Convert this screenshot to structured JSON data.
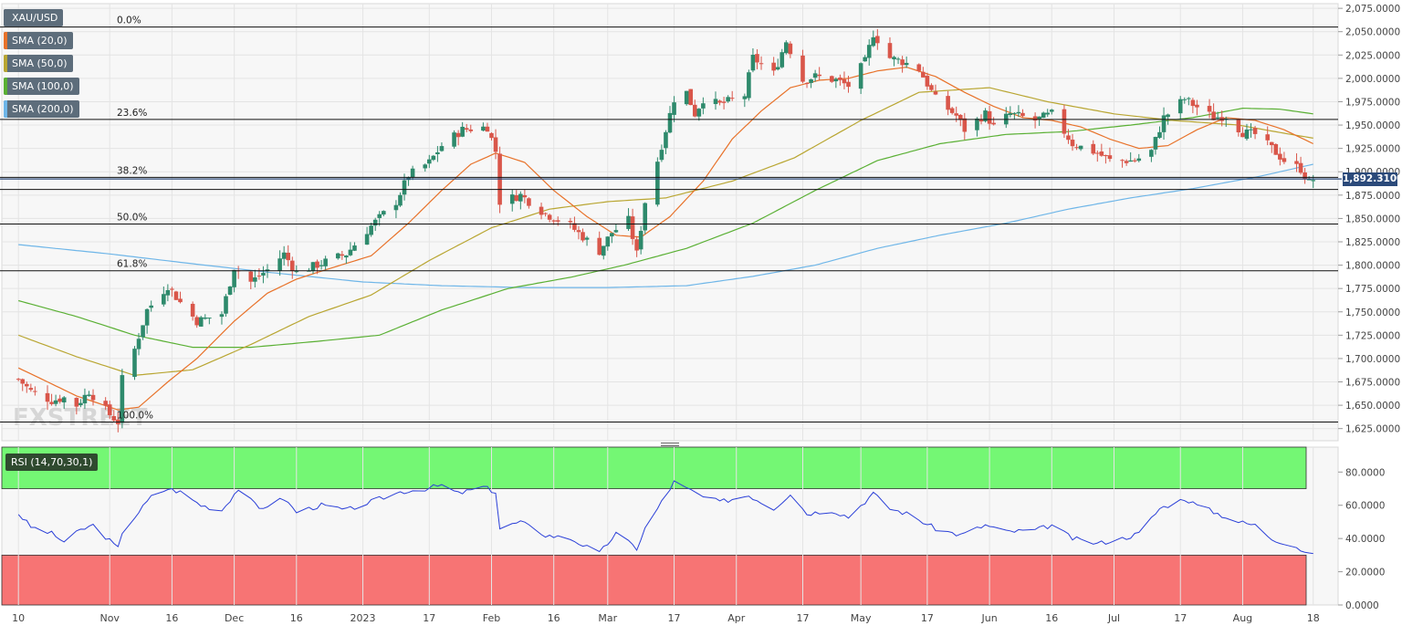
{
  "chart_data": [
    {
      "type": "candlestick",
      "symbol": "XAU/USD",
      "ylim": [
        1612,
        2080
      ],
      "y_ticks": [
        1625,
        1650,
        1675,
        1700,
        1725,
        1750,
        1775,
        1800,
        1825,
        1850,
        1875,
        1900,
        1925,
        1950,
        1975,
        2000,
        2025,
        2050,
        2075
      ],
      "y_tick_labels": [
        "1,625.0000",
        "1,650.0000",
        "1,675.0000",
        "1,700.0000",
        "1,725.0000",
        "1,750.0000",
        "1,775.0000",
        "1,800.0000",
        "1,825.0000",
        "1,850.0000",
        "1,875.0000",
        "1,900.0000",
        "1,925.0000",
        "1,950.0000",
        "1,975.0000",
        "2,000.0000",
        "2,025.0000",
        "2,050.0000",
        "2,075.0000"
      ],
      "x_ticks": [
        {
          "label": "10",
          "date": "2022-10-10"
        },
        {
          "label": "Nov",
          "date": "2022-11-01"
        },
        {
          "label": "16",
          "date": "2022-11-16"
        },
        {
          "label": "Dec",
          "date": "2022-12-01"
        },
        {
          "label": "16",
          "date": "2022-12-16"
        },
        {
          "label": "2023",
          "date": "2023-01-01"
        },
        {
          "label": "17",
          "date": "2023-01-17"
        },
        {
          "label": "Feb",
          "date": "2023-02-01"
        },
        {
          "label": "16",
          "date": "2023-02-16"
        },
        {
          "label": "Mar",
          "date": "2023-03-01"
        },
        {
          "label": "17",
          "date": "2023-03-17"
        },
        {
          "label": "Apr",
          "date": "2023-04-01"
        },
        {
          "label": "17",
          "date": "2023-04-17"
        },
        {
          "label": "May",
          "date": "2023-05-01"
        },
        {
          "label": "17",
          "date": "2023-05-17"
        },
        {
          "label": "Jun",
          "date": "2023-06-01"
        },
        {
          "label": "16",
          "date": "2023-06-16"
        },
        {
          "label": "Jul",
          "date": "2023-07-01"
        },
        {
          "label": "17",
          "date": "2023-07-17"
        },
        {
          "label": "Aug",
          "date": "2023-08-01"
        },
        {
          "label": "18",
          "date": "2023-08-18"
        }
      ],
      "legend": [
        {
          "name": "XAU/USD",
          "color": "#5d6d7b"
        },
        {
          "name": "SMA (20,0)",
          "color": "#e8722a"
        },
        {
          "name": "SMA (50,0)",
          "color": "#b9a632"
        },
        {
          "name": "SMA (100,0)",
          "color": "#5ab034"
        },
        {
          "name": "SMA (200,0)",
          "color": "#6fb6e8"
        }
      ],
      "last_price_label": "1,892.3100",
      "last_price": 1892.31,
      "fibonacci": [
        {
          "label": "0.0%",
          "value": 2055
        },
        {
          "label": "23.6%",
          "value": 1956
        },
        {
          "label": "38.2%",
          "value": 1894
        },
        {
          "label": "50.0%",
          "value": 1844
        },
        {
          "label": "61.8%",
          "value": 1794
        },
        {
          "label": "100.0%",
          "value": 1632
        }
      ],
      "extra_level": 1881,
      "up_color": "#2e8a6c",
      "down_color": "#d9564a",
      "anchors": [
        [
          "2022-10-10",
          1678
        ],
        [
          "2022-10-13",
          1665
        ],
        [
          "2022-10-18",
          1655
        ],
        [
          "2022-10-21",
          1658
        ],
        [
          "2022-10-24",
          1650
        ],
        [
          "2022-10-27",
          1665
        ],
        [
          "2022-11-01",
          1640
        ],
        [
          "2022-11-03",
          1632
        ],
        [
          "2022-11-04",
          1678
        ],
        [
          "2022-11-07",
          1710
        ],
        [
          "2022-11-10",
          1752
        ],
        [
          "2022-11-15",
          1778
        ],
        [
          "2022-11-18",
          1760
        ],
        [
          "2022-11-22",
          1740
        ],
        [
          "2022-11-28",
          1748
        ],
        [
          "2022-12-01",
          1798
        ],
        [
          "2022-12-05",
          1782
        ],
        [
          "2022-12-09",
          1795
        ],
        [
          "2022-12-13",
          1812
        ],
        [
          "2022-12-16",
          1792
        ],
        [
          "2022-12-22",
          1802
        ],
        [
          "2022-12-28",
          1812
        ],
        [
          "2023-01-03",
          1842
        ],
        [
          "2023-01-09",
          1868
        ],
        [
          "2023-01-12",
          1896
        ],
        [
          "2023-01-17",
          1910
        ],
        [
          "2023-01-20",
          1928
        ],
        [
          "2023-01-25",
          1945
        ],
        [
          "2023-01-31",
          1948
        ],
        [
          "2023-02-02",
          1922
        ],
        [
          "2023-02-03",
          1868
        ],
        [
          "2023-02-08",
          1875
        ],
        [
          "2023-02-14",
          1855
        ],
        [
          "2023-02-20",
          1842
        ],
        [
          "2023-02-27",
          1815
        ],
        [
          "2023-03-02",
          1835
        ],
        [
          "2023-03-06",
          1848
        ],
        [
          "2023-03-08",
          1812
        ],
        [
          "2023-03-10",
          1868
        ],
        [
          "2023-03-13",
          1912
        ],
        [
          "2023-03-17",
          1978
        ],
        [
          "2023-03-20",
          1985
        ],
        [
          "2023-03-22",
          1962
        ],
        [
          "2023-03-24",
          1978
        ],
        [
          "2023-03-28",
          1972
        ],
        [
          "2023-04-03",
          1982
        ],
        [
          "2023-04-05",
          2022
        ],
        [
          "2023-04-10",
          2005
        ],
        [
          "2023-04-13",
          2040
        ],
        [
          "2023-04-17",
          1998
        ],
        [
          "2023-04-20",
          2002
        ],
        [
          "2023-04-25",
          1998
        ],
        [
          "2023-04-28",
          1992
        ],
        [
          "2023-05-02",
          2018
        ],
        [
          "2023-05-04",
          2048
        ],
        [
          "2023-05-08",
          2022
        ],
        [
          "2023-05-11",
          2018
        ],
        [
          "2023-05-15",
          2010
        ],
        [
          "2023-05-19",
          1978
        ],
        [
          "2023-05-24",
          1960
        ],
        [
          "2023-05-26",
          1945
        ],
        [
          "2023-05-31",
          1962
        ],
        [
          "2023-06-02",
          1948
        ],
        [
          "2023-06-06",
          1962
        ],
        [
          "2023-06-12",
          1955
        ],
        [
          "2023-06-16",
          1962
        ],
        [
          "2023-06-21",
          1930
        ],
        [
          "2023-06-27",
          1920
        ],
        [
          "2023-06-30",
          1912
        ],
        [
          "2023-07-06",
          1912
        ],
        [
          "2023-07-10",
          1922
        ],
        [
          "2023-07-13",
          1958
        ],
        [
          "2023-07-18",
          1978
        ],
        [
          "2023-07-20",
          1972
        ],
        [
          "2023-07-25",
          1958
        ],
        [
          "2023-07-28",
          1960
        ],
        [
          "2023-08-01",
          1942
        ],
        [
          "2023-08-04",
          1940
        ],
        [
          "2023-08-08",
          1925
        ],
        [
          "2023-08-11",
          1912
        ],
        [
          "2023-08-15",
          1903
        ],
        [
          "2023-08-17",
          1888
        ],
        [
          "2023-08-18",
          1892
        ]
      ],
      "sma_20": [
        [
          "2022-10-10",
          1690
        ],
        [
          "2022-10-24",
          1660
        ],
        [
          "2022-11-03",
          1645
        ],
        [
          "2022-11-08",
          1648
        ],
        [
          "2022-11-15",
          1675
        ],
        [
          "2022-11-22",
          1700
        ],
        [
          "2022-12-01",
          1740
        ],
        [
          "2022-12-09",
          1770
        ],
        [
          "2022-12-16",
          1785
        ],
        [
          "2022-12-23",
          1795
        ],
        [
          "2023-01-03",
          1810
        ],
        [
          "2023-01-12",
          1845
        ],
        [
          "2023-01-20",
          1880
        ],
        [
          "2023-01-27",
          1908
        ],
        [
          "2023-02-02",
          1920
        ],
        [
          "2023-02-09",
          1910
        ],
        [
          "2023-02-16",
          1880
        ],
        [
          "2023-02-24",
          1852
        ],
        [
          "2023-03-03",
          1832
        ],
        [
          "2023-03-09",
          1830
        ],
        [
          "2023-03-16",
          1852
        ],
        [
          "2023-03-24",
          1890
        ],
        [
          "2023-03-31",
          1935
        ],
        [
          "2023-04-07",
          1965
        ],
        [
          "2023-04-14",
          1990
        ],
        [
          "2023-04-21",
          1998
        ],
        [
          "2023-04-28",
          2000
        ],
        [
          "2023-05-05",
          2008
        ],
        [
          "2023-05-12",
          2012
        ],
        [
          "2023-05-19",
          2002
        ],
        [
          "2023-05-26",
          1985
        ],
        [
          "2023-06-02",
          1970
        ],
        [
          "2023-06-09",
          1958
        ],
        [
          "2023-06-16",
          1955
        ],
        [
          "2023-06-23",
          1948
        ],
        [
          "2023-06-30",
          1935
        ],
        [
          "2023-07-07",
          1925
        ],
        [
          "2023-07-14",
          1928
        ],
        [
          "2023-07-21",
          1945
        ],
        [
          "2023-07-28",
          1958
        ],
        [
          "2023-08-04",
          1955
        ],
        [
          "2023-08-11",
          1945
        ],
        [
          "2023-08-18",
          1930
        ]
      ],
      "sma_50": [
        [
          "2022-10-10",
          1725
        ],
        [
          "2022-10-24",
          1702
        ],
        [
          "2022-11-07",
          1682
        ],
        [
          "2022-11-21",
          1688
        ],
        [
          "2022-12-05",
          1715
        ],
        [
          "2022-12-19",
          1745
        ],
        [
          "2023-01-03",
          1768
        ],
        [
          "2023-01-17",
          1805
        ],
        [
          "2023-02-01",
          1840
        ],
        [
          "2023-02-15",
          1860
        ],
        [
          "2023-03-01",
          1868
        ],
        [
          "2023-03-15",
          1872
        ],
        [
          "2023-03-31",
          1890
        ],
        [
          "2023-04-15",
          1915
        ],
        [
          "2023-05-01",
          1955
        ],
        [
          "2023-05-15",
          1985
        ],
        [
          "2023-06-01",
          1990
        ],
        [
          "2023-06-15",
          1975
        ],
        [
          "2023-07-01",
          1962
        ],
        [
          "2023-07-15",
          1955
        ],
        [
          "2023-07-31",
          1950
        ],
        [
          "2023-08-10",
          1942
        ],
        [
          "2023-08-18",
          1936
        ]
      ],
      "sma_100": [
        [
          "2022-10-10",
          1762
        ],
        [
          "2022-10-24",
          1745
        ],
        [
          "2022-11-07",
          1725
        ],
        [
          "2022-11-21",
          1712
        ],
        [
          "2022-12-05",
          1712
        ],
        [
          "2022-12-20",
          1718
        ],
        [
          "2023-01-05",
          1725
        ],
        [
          "2023-01-20",
          1752
        ],
        [
          "2023-02-05",
          1775
        ],
        [
          "2023-02-20",
          1787
        ],
        [
          "2023-03-05",
          1800
        ],
        [
          "2023-03-20",
          1818
        ],
        [
          "2023-04-05",
          1845
        ],
        [
          "2023-04-20",
          1880
        ],
        [
          "2023-05-05",
          1912
        ],
        [
          "2023-05-20",
          1930
        ],
        [
          "2023-06-05",
          1940
        ],
        [
          "2023-06-20",
          1943
        ],
        [
          "2023-07-05",
          1950
        ],
        [
          "2023-07-20",
          1958
        ],
        [
          "2023-08-01",
          1968
        ],
        [
          "2023-08-10",
          1967
        ],
        [
          "2023-08-18",
          1962
        ]
      ],
      "sma_200": [
        [
          "2022-10-10",
          1822
        ],
        [
          "2022-11-01",
          1812
        ],
        [
          "2022-11-20",
          1802
        ],
        [
          "2022-12-10",
          1792
        ],
        [
          "2023-01-01",
          1782
        ],
        [
          "2023-01-20",
          1778
        ],
        [
          "2023-02-10",
          1776
        ],
        [
          "2023-03-01",
          1776
        ],
        [
          "2023-03-20",
          1778
        ],
        [
          "2023-04-05",
          1788
        ],
        [
          "2023-04-20",
          1800
        ],
        [
          "2023-05-05",
          1818
        ],
        [
          "2023-05-20",
          1832
        ],
        [
          "2023-06-05",
          1845
        ],
        [
          "2023-06-20",
          1860
        ],
        [
          "2023-07-05",
          1872
        ],
        [
          "2023-07-20",
          1882
        ],
        [
          "2023-08-05",
          1895
        ],
        [
          "2023-08-18",
          1908
        ]
      ]
    },
    {
      "type": "line",
      "name": "RSI (14,70,30,1)",
      "ylim": [
        0,
        95
      ],
      "y_ticks": [
        0,
        20,
        40,
        60,
        80
      ],
      "y_tick_labels": [
        "0.0000",
        "20.0000",
        "40.0000",
        "60.0000",
        "80.0000"
      ],
      "overbought": 70,
      "oversold": 30,
      "overbought_color": "#74f774",
      "oversold_color": "#f77474",
      "line_color": "#2a3fd8",
      "x_ticks_ref": "shared",
      "anchors": [
        [
          "2022-10-10",
          55
        ],
        [
          "2022-10-13",
          47
        ],
        [
          "2022-10-18",
          43
        ],
        [
          "2022-10-21",
          38
        ],
        [
          "2022-10-25",
          45
        ],
        [
          "2022-10-28",
          48
        ],
        [
          "2022-11-03",
          34
        ],
        [
          "2022-11-04",
          44
        ],
        [
          "2022-11-08",
          56
        ],
        [
          "2022-11-11",
          65
        ],
        [
          "2022-11-15",
          70
        ],
        [
          "2022-11-18",
          68
        ],
        [
          "2022-11-23",
          60
        ],
        [
          "2022-11-28",
          57
        ],
        [
          "2022-12-02",
          70
        ],
        [
          "2022-12-07",
          58
        ],
        [
          "2022-12-13",
          64
        ],
        [
          "2022-12-16",
          56
        ],
        [
          "2022-12-22",
          60
        ],
        [
          "2022-12-28",
          57
        ],
        [
          "2023-01-04",
          63
        ],
        [
          "2023-01-10",
          68
        ],
        [
          "2023-01-16",
          70
        ],
        [
          "2023-01-20",
          72
        ],
        [
          "2023-01-24",
          67
        ],
        [
          "2023-01-30",
          71
        ],
        [
          "2023-02-02",
          68
        ],
        [
          "2023-02-03",
          46
        ],
        [
          "2023-02-08",
          50
        ],
        [
          "2023-02-14",
          42
        ],
        [
          "2023-02-20",
          40
        ],
        [
          "2023-02-27",
          31
        ],
        [
          "2023-03-03",
          43
        ],
        [
          "2023-03-08",
          34
        ],
        [
          "2023-03-10",
          46
        ],
        [
          "2023-03-13",
          58
        ],
        [
          "2023-03-17",
          74
        ],
        [
          "2023-03-20",
          70
        ],
        [
          "2023-03-24",
          65
        ],
        [
          "2023-03-28",
          62
        ],
        [
          "2023-04-04",
          66
        ],
        [
          "2023-04-10",
          58
        ],
        [
          "2023-04-14",
          67
        ],
        [
          "2023-04-18",
          55
        ],
        [
          "2023-04-24",
          57
        ],
        [
          "2023-04-28",
          53
        ],
        [
          "2023-05-04",
          67
        ],
        [
          "2023-05-08",
          58
        ],
        [
          "2023-05-12",
          55
        ],
        [
          "2023-05-19",
          46
        ],
        [
          "2023-05-25",
          42
        ],
        [
          "2023-05-31",
          48
        ],
        [
          "2023-06-05",
          44
        ],
        [
          "2023-06-12",
          45
        ],
        [
          "2023-06-16",
          48
        ],
        [
          "2023-06-21",
          40
        ],
        [
          "2023-06-27",
          37
        ],
        [
          "2023-07-03",
          40
        ],
        [
          "2023-07-07",
          43
        ],
        [
          "2023-07-12",
          58
        ],
        [
          "2023-07-18",
          64
        ],
        [
          "2023-07-21",
          60
        ],
        [
          "2023-07-26",
          55
        ],
        [
          "2023-07-31",
          50
        ],
        [
          "2023-08-04",
          48
        ],
        [
          "2023-08-08",
          40
        ],
        [
          "2023-08-14",
          35
        ],
        [
          "2023-08-17",
          30
        ],
        [
          "2023-08-18",
          32
        ]
      ]
    }
  ]
}
